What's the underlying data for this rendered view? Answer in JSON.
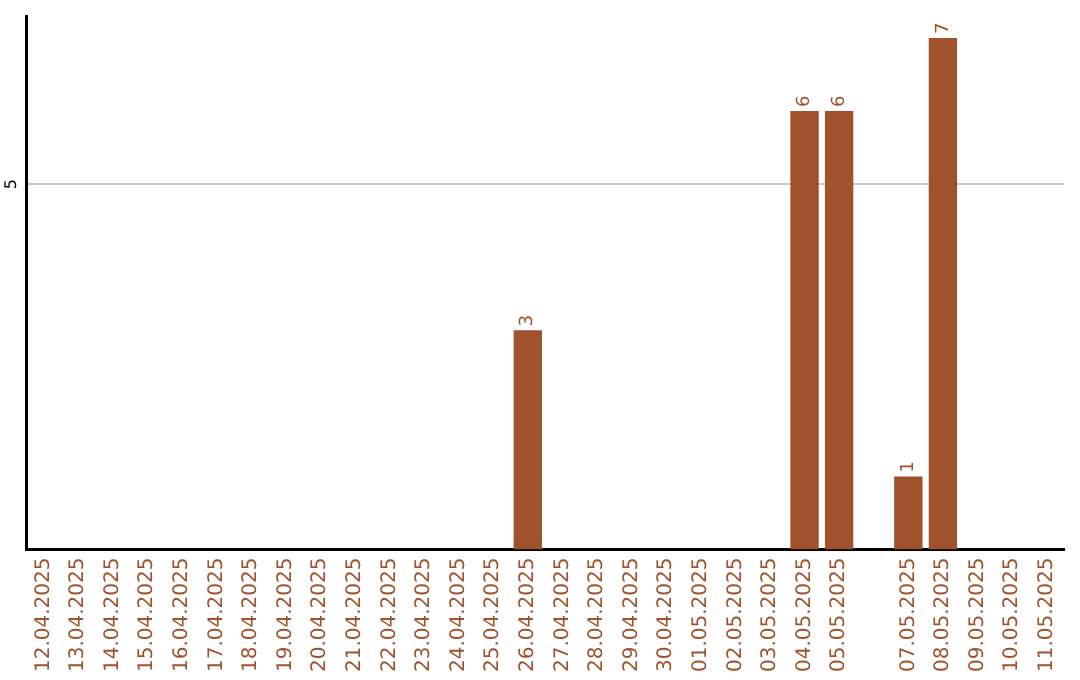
{
  "chart_data": {
    "type": "bar",
    "categories": [
      "12.04.2025",
      "13.04.2025",
      "14.04.2025",
      "15.04.2025",
      "16.04.2025",
      "17.04.2025",
      "18.04.2025",
      "19.04.2025",
      "20.04.2025",
      "21.04.2025",
      "22.04.2025",
      "23.04.2025",
      "24.04.2025",
      "25.04.2025",
      "26.04.2025",
      "27.04.2025",
      "28.04.2025",
      "29.04.2025",
      "30.04.2025",
      "01.05.2025",
      "02.05.2025",
      "03.05.2025",
      "04.05.2025",
      "05.05.2025",
      null,
      "07.05.2025",
      "08.05.2025",
      "09.05.2025",
      "10.05.2025",
      "11.05.2025"
    ],
    "values": [
      null,
      null,
      null,
      null,
      null,
      null,
      null,
      null,
      null,
      null,
      null,
      null,
      null,
      null,
      3,
      null,
      null,
      null,
      null,
      null,
      null,
      null,
      6,
      6,
      null,
      1,
      7,
      null,
      null,
      null
    ],
    "color": "#a0522d",
    "ylim": [
      0,
      7.3
    ],
    "yticks": [
      5
    ],
    "grid": "y",
    "legend": false,
    "data_labels": true
  }
}
